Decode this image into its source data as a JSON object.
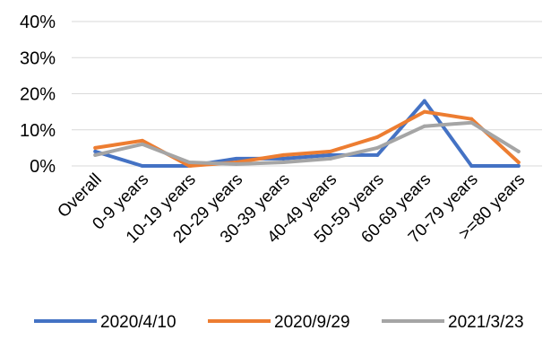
{
  "chart_data": {
    "type": "line",
    "categories": [
      "Overall",
      "0-9 years",
      "10-19 years",
      "20-29 years",
      "30-39 years",
      "40-49 years",
      "50-59 years",
      "60-69 years",
      "70-79 years",
      ">=80 years"
    ],
    "series": [
      {
        "name": "2020/4/10",
        "color": "#4472C4",
        "values": [
          4,
          0,
          0,
          2,
          2,
          3,
          3,
          18,
          0,
          0
        ]
      },
      {
        "name": "2020/9/29",
        "color": "#ED7D31",
        "values": [
          5,
          7,
          0,
          1,
          3,
          4,
          8,
          15,
          13,
          1
        ]
      },
      {
        "name": "2021/3/23",
        "color": "#A5A5A5",
        "values": [
          3,
          6,
          1,
          0.5,
          1,
          2,
          5,
          11,
          12,
          4
        ]
      }
    ],
    "yticks": [
      "0%",
      "10%",
      "20%",
      "30%",
      "40%"
    ],
    "ylim": [
      0,
      40
    ],
    "grid": true,
    "legend": "bottom"
  }
}
